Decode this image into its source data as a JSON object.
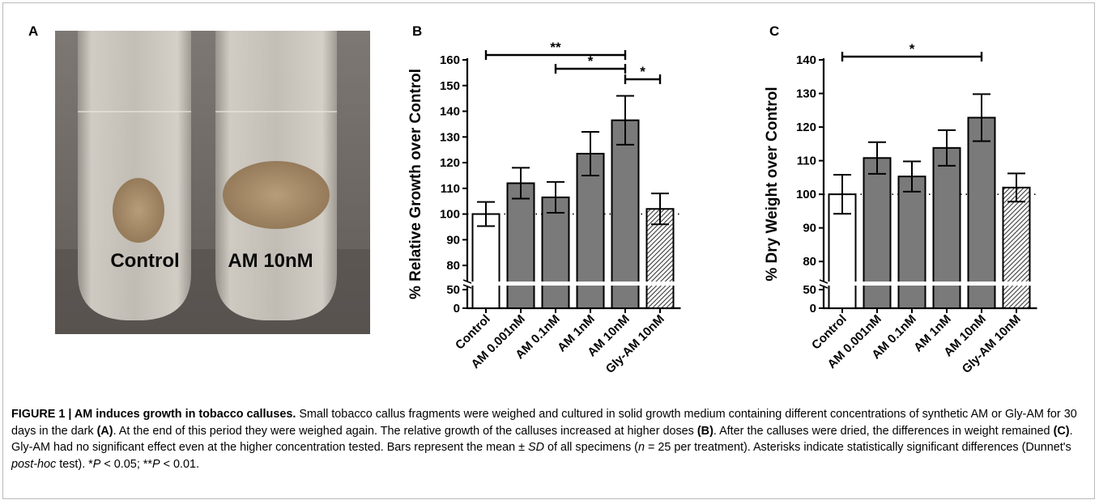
{
  "panels": {
    "a": {
      "letter": "A",
      "labels": {
        "control": "Control",
        "treated": "AM 10nM"
      },
      "colors": {
        "background": "#6f6a66",
        "callus": "#a98f6c",
        "medium": "#d6d2c8"
      }
    },
    "b": {
      "letter": "B"
    },
    "c": {
      "letter": "C"
    }
  },
  "chart_data": [
    {
      "type": "bar",
      "panel": "B",
      "ylabel": "% Relative Growth over Control",
      "categories": [
        "Control",
        "AM 0.001nM",
        "AM 0.1nM",
        "AM 1nM",
        "AM 10nM",
        "Gly-AM 10nM"
      ],
      "values": [
        100,
        112,
        106.5,
        123.5,
        136.5,
        102
      ],
      "errors": [
        4.7,
        6,
        6,
        8.5,
        9.5,
        6
      ],
      "fills": [
        "white",
        "gray",
        "gray",
        "gray",
        "gray",
        "hatched"
      ],
      "yticks": [
        0,
        50,
        80,
        90,
        100,
        110,
        120,
        130,
        140,
        150,
        160
      ],
      "ybreak": [
        50,
        75
      ],
      "ylim": [
        0,
        160
      ],
      "reference_line": 100,
      "significance": [
        {
          "from": 0,
          "to": 4,
          "label": "**"
        },
        {
          "from": 2,
          "to": 4,
          "label": "*"
        },
        {
          "from": 4,
          "to": 5,
          "label": "*"
        }
      ]
    },
    {
      "type": "bar",
      "panel": "C",
      "ylabel": "% Dry Weight over Control",
      "categories": [
        "Control",
        "AM 0.001nM",
        "AM 0.1nM",
        "AM 1nM",
        "AM 10nM",
        "Gly-AM 10nM"
      ],
      "values": [
        100,
        110.8,
        105.3,
        113.8,
        122.8,
        102
      ],
      "errors": [
        5.8,
        4.7,
        4.5,
        5.3,
        7,
        4.2
      ],
      "fills": [
        "white",
        "gray",
        "gray",
        "gray",
        "gray",
        "hatched"
      ],
      "yticks": [
        0,
        50,
        80,
        90,
        100,
        110,
        120,
        130,
        140
      ],
      "ybreak": [
        50,
        75
      ],
      "ylim": [
        0,
        140
      ],
      "reference_line": 100,
      "significance": [
        {
          "from": 0,
          "to": 4,
          "label": "*"
        }
      ]
    }
  ],
  "caption": {
    "figure_label": "FIGURE 1 | AM induces growth in tobacco calluses.",
    "seg1": " Small tobacco callus fragments were weighed and cultured in solid growth medium containing different concentrations of synthetic AM or Gly-AM for 30 days in the dark ",
    "ref_a": "(A)",
    "seg2": ". At the end of this period they were weighed again. The relative growth of the calluses increased at higher doses ",
    "ref_b": "(B)",
    "seg3": ". After the calluses were dried, the differences in weight remained ",
    "ref_c": "(C)",
    "seg4": ". Gly-AM had no significant effect even at the higher concentration tested. Bars represent the mean ± ",
    "sd": "SD",
    "seg5": " of all specimens (",
    "n": "n",
    "seg6": " = 25 per treatment). Asterisks indicate statistically significant differences (Dunnet's ",
    "posthoc": "post-hoc",
    "seg7": " test). *",
    "p1": "P",
    "seg8": " < 0.05; **",
    "p2": "P",
    "seg9": " < 0.01."
  }
}
